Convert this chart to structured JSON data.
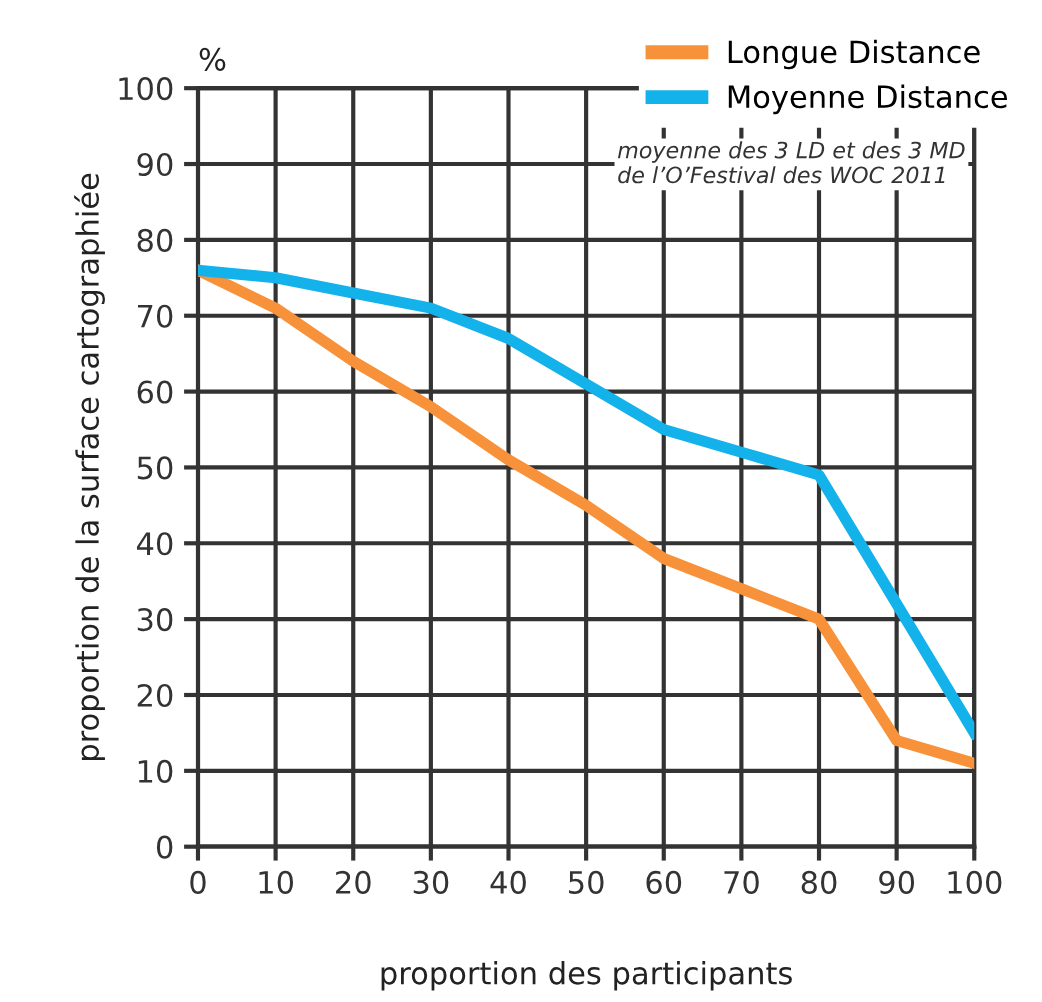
{
  "chart_data": {
    "type": "line",
    "x": [
      0,
      10,
      20,
      30,
      40,
      50,
      60,
      70,
      80,
      90,
      100
    ],
    "series": [
      {
        "name": "Longue Distance",
        "color": "#f7923a",
        "values": [
          76,
          71,
          64,
          58,
          51,
          45,
          38,
          34,
          30,
          14,
          11
        ]
      },
      {
        "name": "Moyenne Distance",
        "color": "#14b2ea",
        "values": [
          76,
          75,
          73,
          71,
          67,
          61,
          55,
          52,
          49,
          32,
          15
        ]
      }
    ],
    "xlim": [
      0,
      100
    ],
    "ylim": [
      0,
      100
    ],
    "xticks": [
      0,
      10,
      20,
      30,
      40,
      50,
      60,
      70,
      80,
      90,
      100
    ],
    "yticks": [
      0,
      10,
      20,
      30,
      40,
      50,
      60,
      70,
      80,
      90,
      100
    ],
    "xlabel": "proportion des participants",
    "ylabel": "proportion de la surface cartographiée",
    "annotations": [
      "%",
      "moyenne des 3 LD et des 3 MD\nde l’O’Festival des WOC 2011"
    ],
    "grid": true,
    "legend": "top right",
    "line_style": "solid",
    "marker": "none"
  }
}
